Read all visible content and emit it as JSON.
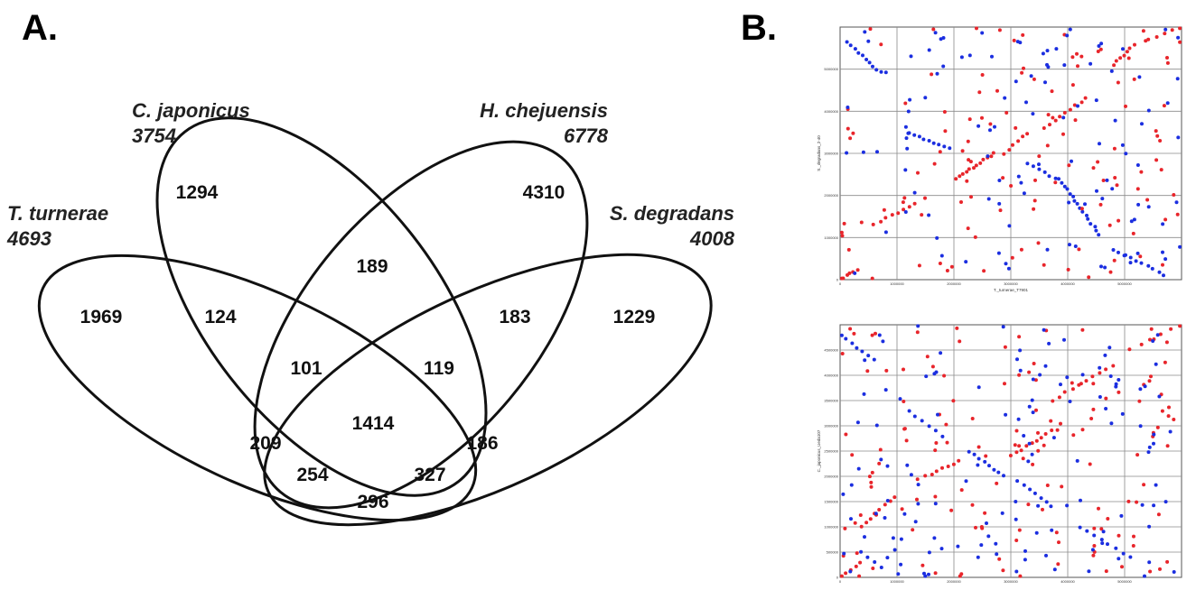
{
  "panel_a": {
    "letter": "A.",
    "species": [
      {
        "name": "T. turnerae",
        "total": "4693"
      },
      {
        "name": "C. japonicus",
        "total": "3754"
      },
      {
        "name": "H. chejuensis",
        "total": "6778"
      },
      {
        "name": "S. degradans",
        "total": "4008"
      }
    ],
    "regions": [
      {
        "value": "1969"
      },
      {
        "value": "1294"
      },
      {
        "value": "4310"
      },
      {
        "value": "1229"
      },
      {
        "value": "124"
      },
      {
        "value": "189"
      },
      {
        "value": "183"
      },
      {
        "value": "101"
      },
      {
        "value": "119"
      },
      {
        "value": "1414"
      },
      {
        "value": "209"
      },
      {
        "value": "186"
      },
      {
        "value": "254"
      },
      {
        "value": "327"
      },
      {
        "value": "296"
      }
    ]
  },
  "panel_b": {
    "letter": "B.",
    "colors": {
      "forward": "#e8252b",
      "reverse": "#1b2ee0"
    },
    "plots": [
      {
        "xlabel": "T._turnerae_T7901",
        "ylabel": "S._degradans_2-40",
        "xticks": [
          "0",
          "1000000",
          "2000000",
          "3000000",
          "4000000",
          "5000000"
        ],
        "yticks": [
          "0",
          "1000000",
          "2000000",
          "3000000",
          "4000000",
          "5000000"
        ],
        "seed": 11,
        "forward_segments": [
          [
            0.0,
            0.0,
            0.05,
            0.04,
            6
          ],
          [
            0.34,
            0.4,
            0.45,
            0.5,
            12
          ],
          [
            0.1,
            0.22,
            0.22,
            0.3,
            8
          ],
          [
            0.48,
            0.5,
            0.55,
            0.58,
            6
          ],
          [
            0.6,
            0.6,
            0.72,
            0.72,
            9
          ],
          [
            0.8,
            0.85,
            0.86,
            0.93,
            7
          ],
          [
            0.9,
            0.95,
            1.0,
            1.0,
            5
          ]
        ],
        "reverse_segments": [
          [
            0.02,
            0.94,
            0.12,
            0.82,
            10
          ],
          [
            0.2,
            0.58,
            0.32,
            0.52,
            9
          ],
          [
            0.55,
            0.46,
            0.63,
            0.4,
            6
          ],
          [
            0.64,
            0.4,
            0.76,
            0.18,
            16
          ],
          [
            0.8,
            0.12,
            0.95,
            0.02,
            10
          ]
        ],
        "forward_scatter": 120,
        "reverse_scatter": 110
      },
      {
        "xlabel": "",
        "ylabel": "C._japonicus_Ueda107",
        "xticks": [
          "0",
          "1000000",
          "2000000",
          "3000000",
          "4000000",
          "5000000"
        ],
        "yticks": [
          "0",
          "500000",
          "1000000",
          "1500000",
          "2000000",
          "2500000",
          "3000000",
          "3500000",
          "4000000",
          "4500000"
        ],
        "seed": 29,
        "forward_segments": [
          [
            0.0,
            0.0,
            0.06,
            0.06,
            5
          ],
          [
            0.06,
            0.2,
            0.16,
            0.32,
            8
          ],
          [
            0.25,
            0.4,
            0.35,
            0.46,
            7
          ],
          [
            0.5,
            0.48,
            0.62,
            0.58,
            9
          ],
          [
            0.62,
            0.7,
            0.8,
            0.84,
            10
          ],
          [
            0.85,
            0.9,
            1.0,
            1.0,
            6
          ]
        ],
        "reverse_segments": [
          [
            0.0,
            0.96,
            0.1,
            0.86,
            7
          ],
          [
            0.2,
            0.66,
            0.3,
            0.56,
            6
          ],
          [
            0.38,
            0.5,
            0.48,
            0.4,
            8
          ],
          [
            0.52,
            0.38,
            0.62,
            0.28,
            7
          ],
          [
            0.7,
            0.2,
            0.85,
            0.08,
            8
          ],
          [
            0.06,
            0.1,
            0.12,
            0.04,
            4
          ]
        ],
        "forward_scatter": 140,
        "reverse_scatter": 130
      }
    ]
  }
}
